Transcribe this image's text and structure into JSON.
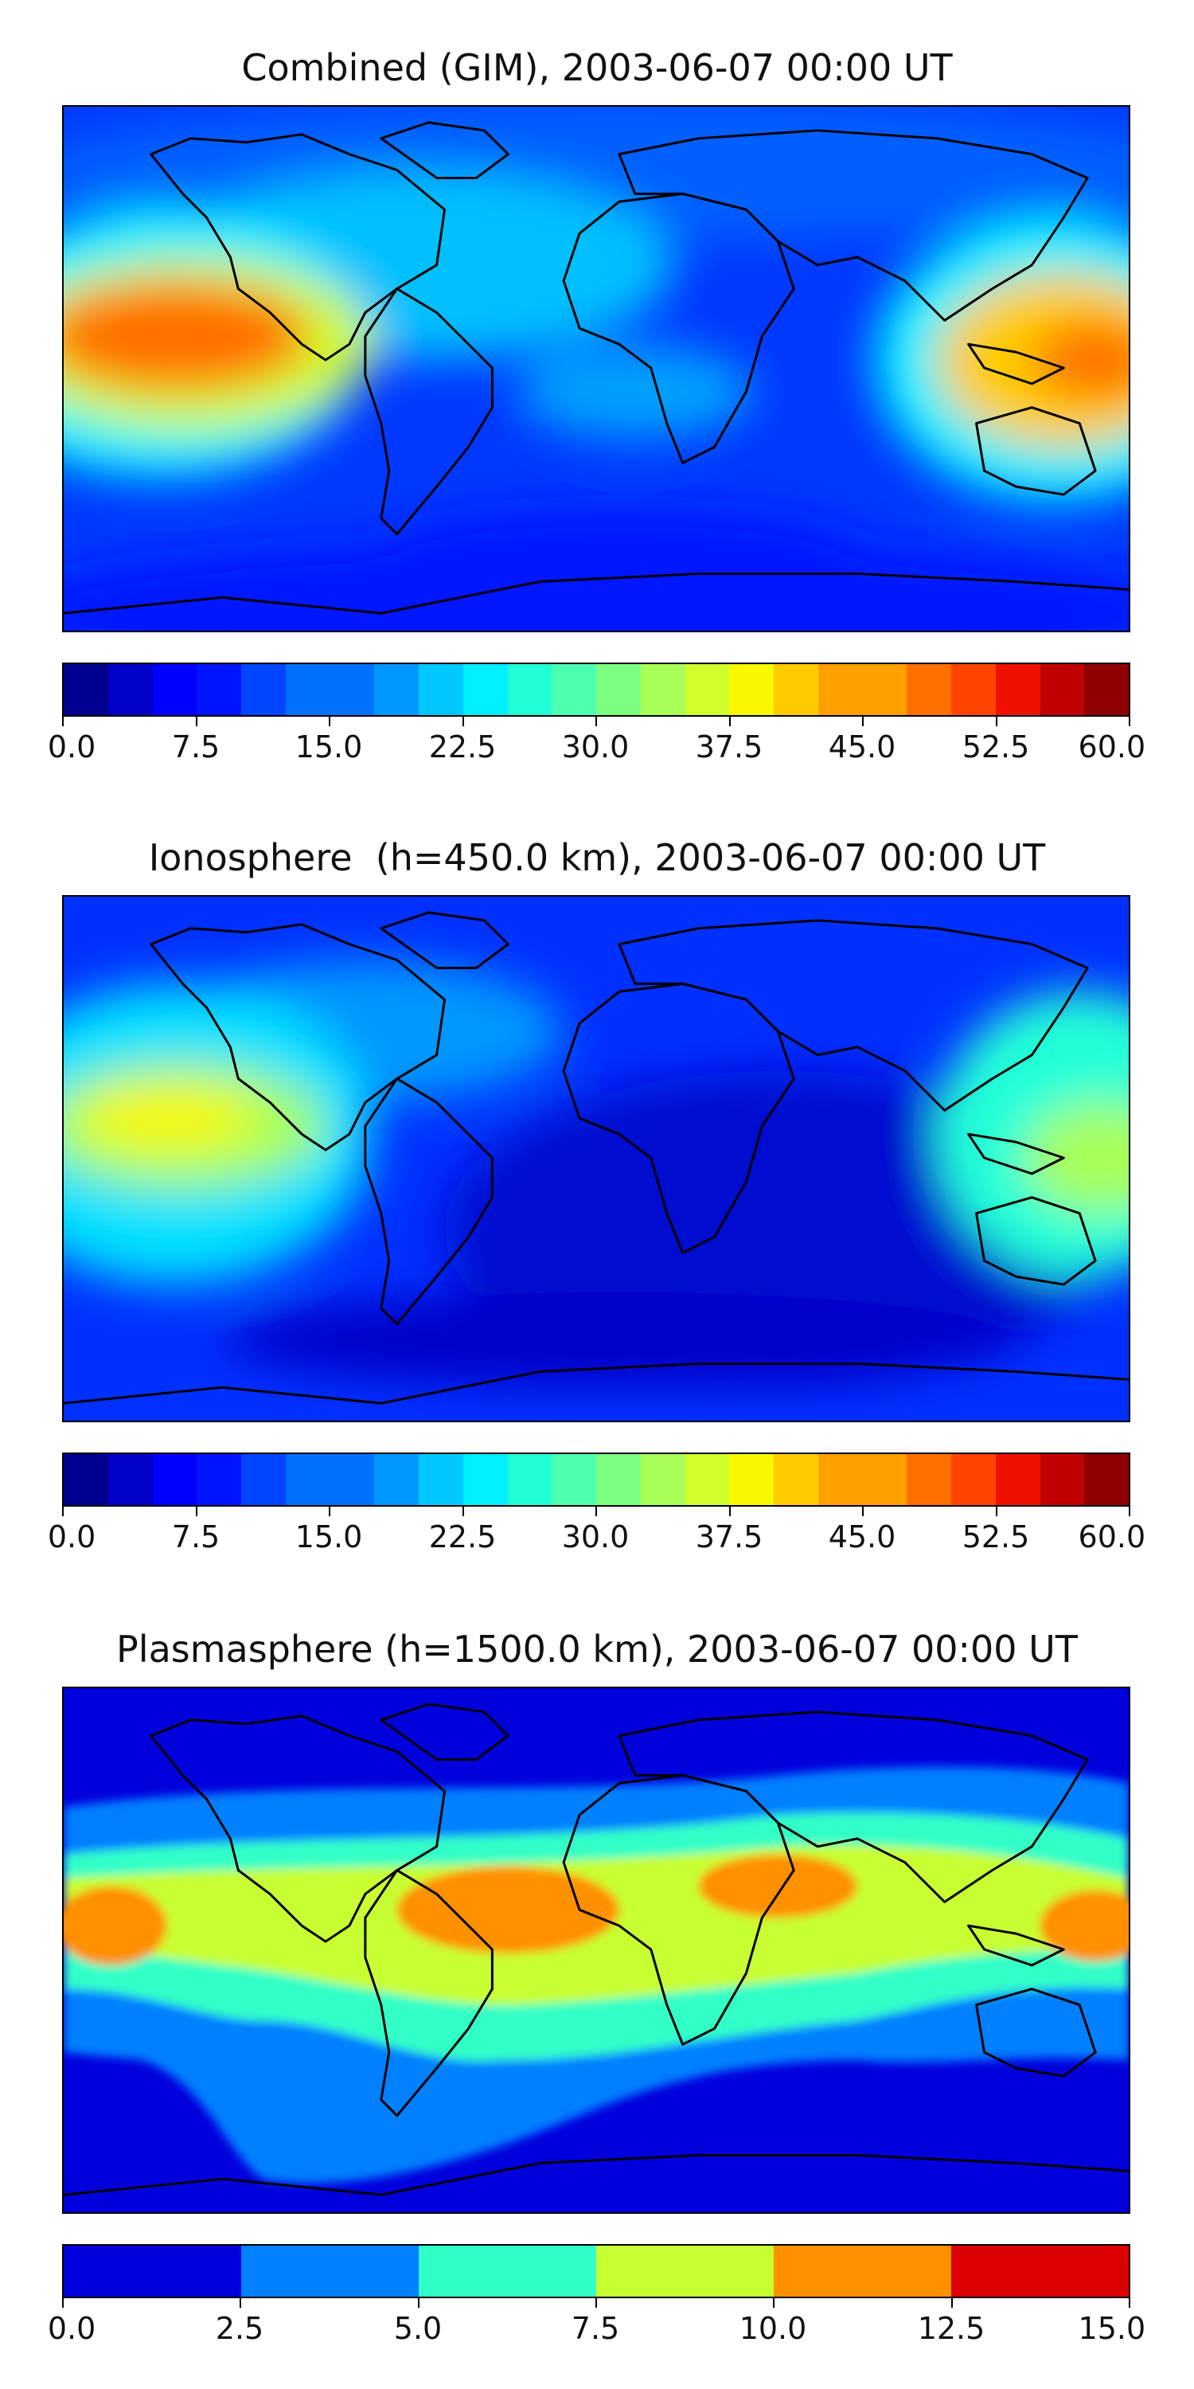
{
  "colors": {
    "jet": [
      "#00008f",
      "#0000c8",
      "#0000ff",
      "#0014ff",
      "#0045ff",
      "#0070ff",
      "#0098ff",
      "#00c8ff",
      "#00f0ff",
      "#20ffd8",
      "#4cffb0",
      "#7cff80",
      "#a8ff56",
      "#d0ff2c",
      "#f8f800",
      "#ffcc00",
      "#ffa000",
      "#ff7000",
      "#ff4400",
      "#f01000",
      "#c00000",
      "#8f0000"
    ],
    "plasma": [
      "#0000dc",
      "#0080ff",
      "#30ffc8",
      "#c8ff30",
      "#ff9000",
      "#dc0000"
    ]
  },
  "panels": [
    {
      "title": "Combined (GIM), 2003-06-07 00:00 UT",
      "colorbar": {
        "levels": 24,
        "ticks": [
          "0.0",
          "7.5",
          "15.0",
          "22.5",
          "30.0",
          "37.5",
          "45.0",
          "52.5",
          "60.0"
        ]
      },
      "field": "combined"
    },
    {
      "title": "Ionosphere  (h=450.0 km), 2003-06-07 00:00 UT",
      "colorbar": {
        "levels": 24,
        "ticks": [
          "0.0",
          "7.5",
          "15.0",
          "22.5",
          "30.0",
          "37.5",
          "45.0",
          "52.5",
          "60.0"
        ]
      },
      "field": "ionosphere"
    },
    {
      "title": "Plasmasphere (h=1500.0 km), 2003-06-07 00:00 UT",
      "colorbar": {
        "levels": 6,
        "ticks": [
          "0.0",
          "2.5",
          "5.0",
          "7.5",
          "10.0",
          "12.5",
          "15.0"
        ]
      },
      "field": "plasmasphere"
    }
  ]
}
